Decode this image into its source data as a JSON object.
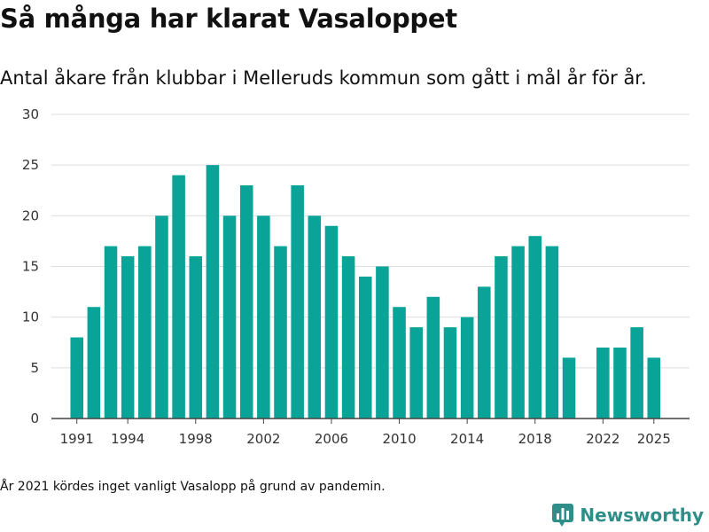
{
  "title": "Så många har klarat Vasaloppet",
  "subtitle": "Antal åkare från klubbar i Melleruds kommun som gått i mål år för år.",
  "footnote": "År 2021 kördes inget vanligt Vasalopp på grund av pandemin.",
  "brand": {
    "name": "Newsworthy",
    "icon": "newsworthy-logo-icon"
  },
  "colors": {
    "bar": "#0aa398",
    "grid": "#dddddd",
    "axis": "#444444",
    "brand": "#2f8f88"
  },
  "chart_data": {
    "type": "bar",
    "x": [
      1991,
      1992,
      1993,
      1994,
      1995,
      1996,
      1997,
      1998,
      1999,
      2000,
      2001,
      2002,
      2003,
      2004,
      2005,
      2006,
      2007,
      2008,
      2009,
      2010,
      2011,
      2012,
      2013,
      2014,
      2015,
      2016,
      2017,
      2018,
      2019,
      2020,
      2021,
      2022,
      2023,
      2024,
      2025
    ],
    "values": [
      8,
      11,
      17,
      16,
      17,
      20,
      24,
      16,
      25,
      20,
      23,
      20,
      17,
      23,
      20,
      19,
      16,
      14,
      15,
      11,
      9,
      12,
      9,
      10,
      13,
      16,
      17,
      18,
      17,
      6,
      null,
      7,
      7,
      9,
      6
    ],
    "x_ticks": [
      "1991",
      "1994",
      "1998",
      "2002",
      "2006",
      "2010",
      "2014",
      "2018",
      "2022",
      "2025"
    ],
    "y_ticks": [
      "0",
      "5",
      "10",
      "15",
      "20",
      "25",
      "30"
    ],
    "ylim": [
      0,
      30
    ],
    "xlim": [
      1989.5,
      2027.1
    ],
    "grid": true
  }
}
